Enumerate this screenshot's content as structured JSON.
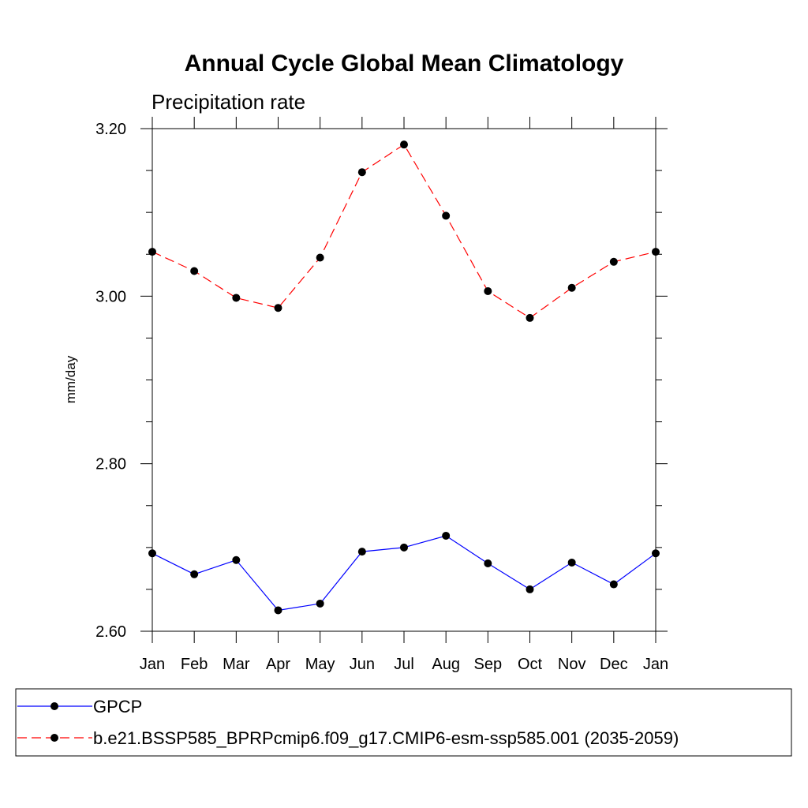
{
  "chart_data": {
    "type": "line",
    "title": "Annual Cycle Global Mean Climatology",
    "subtitle": "Precipitation rate",
    "xlabel": "",
    "ylabel": "mm/day",
    "categories": [
      "Jan",
      "Feb",
      "Mar",
      "Apr",
      "May",
      "Jun",
      "Jul",
      "Aug",
      "Sep",
      "Oct",
      "Nov",
      "Dec",
      "Jan"
    ],
    "ylim": [
      2.6,
      3.2
    ],
    "yticks": [
      {
        "value": 2.6,
        "label": "2.60"
      },
      {
        "value": 2.8,
        "label": "2.80"
      },
      {
        "value": 3.0,
        "label": "3.00"
      },
      {
        "value": 3.2,
        "label": "3.20"
      }
    ],
    "yminor_step": 0.05,
    "grid": false,
    "legend_position": "bottom",
    "series": [
      {
        "name": "GPCP",
        "color": "#0000ff",
        "line_style": "solid",
        "marker": "filled-circle",
        "values": [
          2.693,
          2.668,
          2.685,
          2.625,
          2.633,
          2.695,
          2.7,
          2.714,
          2.681,
          2.65,
          2.682,
          2.656,
          2.693
        ]
      },
      {
        "name": "b.e21.BSSP585_BPRPcmip6.f09_g17.CMIP6-esm-ssp585.001 (2035-2059)",
        "color": "#ff0000",
        "line_style": "dashed",
        "marker": "filled-circle",
        "values": [
          3.053,
          3.03,
          2.998,
          2.986,
          3.046,
          3.148,
          3.181,
          3.096,
          3.006,
          2.974,
          3.01,
          3.041,
          3.053
        ]
      }
    ]
  }
}
